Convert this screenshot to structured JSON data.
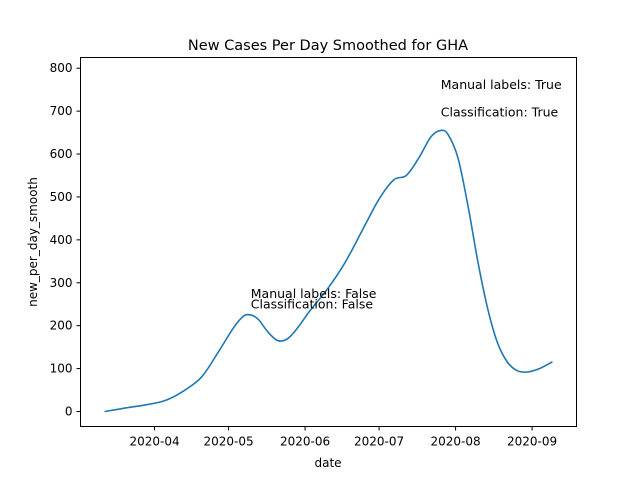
{
  "chart_data": {
    "type": "line",
    "title": "New Cases Per Day Smoothed for GHA",
    "xlabel": "date",
    "ylabel": "new_per_day_smooth",
    "xlim": [
      "2020-03-02",
      "2020-09-19"
    ],
    "ylim": [
      -35,
      825
    ],
    "x_ticks": [
      "2020-04",
      "2020-05",
      "2020-06",
      "2020-07",
      "2020-08",
      "2020-09"
    ],
    "y_ticks": [
      0,
      100,
      200,
      300,
      400,
      500,
      600,
      700,
      800
    ],
    "grid": false,
    "series": [
      {
        "color": "#1f77b4",
        "x": [
          "2020-03-12",
          "2020-03-20",
          "2020-03-28",
          "2020-04-05",
          "2020-04-12",
          "2020-04-20",
          "2020-04-27",
          "2020-05-03",
          "2020-05-07",
          "2020-05-10",
          "2020-05-13",
          "2020-05-17",
          "2020-05-21",
          "2020-05-25",
          "2020-05-29",
          "2020-06-03",
          "2020-06-10",
          "2020-06-17",
          "2020-06-24",
          "2020-07-01",
          "2020-07-07",
          "2020-07-12",
          "2020-07-17",
          "2020-07-22",
          "2020-07-26",
          "2020-07-29",
          "2020-08-02",
          "2020-08-06",
          "2020-08-10",
          "2020-08-14",
          "2020-08-18",
          "2020-08-22",
          "2020-08-26",
          "2020-08-30",
          "2020-09-04",
          "2020-09-09"
        ],
        "values": [
          0,
          8,
          15,
          25,
          45,
          80,
          140,
          195,
          222,
          225,
          215,
          185,
          165,
          170,
          195,
          235,
          285,
          345,
          420,
          495,
          540,
          550,
          590,
          640,
          655,
          645,
          590,
          480,
          350,
          240,
          160,
          115,
          95,
          92,
          100,
          115
        ]
      }
    ],
    "annotations": [
      {
        "text": "Manual labels: True",
        "x": "2020-07-26",
        "y": 752
      },
      {
        "text": "Classification: True",
        "x": "2020-07-26",
        "y": 687
      },
      {
        "text": "Manual labels: False",
        "x": "2020-05-10",
        "y": 265
      },
      {
        "text": "Classification: False",
        "x": "2020-05-10",
        "y": 240
      }
    ]
  }
}
